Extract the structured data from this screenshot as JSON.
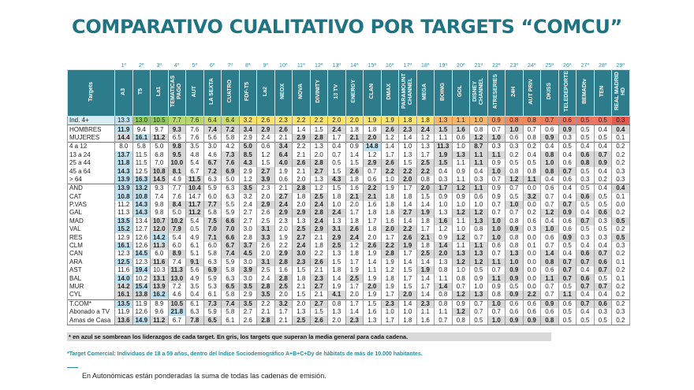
{
  "title": "COMPARATIVO CUALITATIVO POR TARGETS “COMCU”",
  "table": {
    "corner_label": "Targets",
    "ranks": [
      "1ª",
      "2ª",
      "3ª",
      "4ª",
      "5ª",
      "6ª",
      "7ª",
      "8ª",
      "9ª",
      "10ª",
      "11ª",
      "12ª",
      "13ª",
      "14ª",
      "15ª",
      "16ª",
      "17ª",
      "18ª",
      "19ª",
      "20ª",
      "21ª",
      "22ª",
      "23ª",
      "24ª",
      "25ª",
      "26ª",
      "27ª",
      "28ª",
      "29ª"
    ],
    "channels": [
      "A3",
      "T5",
      "La1",
      "TEMATICAS PAGO",
      "AUT",
      "LA SEXTA",
      "CUATRO",
      "FDF-T5",
      "La2",
      "NEOX",
      "NOVA",
      "DIVINITY",
      "13 TV",
      "ENERGY",
      "CLAN",
      "DMAX",
      "PARAMOUNT CHANNEL",
      "MEGA",
      "BOING",
      "GOL",
      "DISNEY CHANNEL",
      "ATRESERIES",
      "24H",
      "AUT PRIV",
      "DKISS",
      "TELEDEPORTE",
      "BEMADtv",
      "TEN",
      "REAL MADRID HD"
    ],
    "index_row": {
      "label": "Ind. 4+",
      "values": [
        "13.3",
        "13.0",
        "10.5",
        "7.7",
        "7.6",
        "6.4",
        "6.4",
        "3.2",
        "2.6",
        "2.3",
        "2.2",
        "2.2",
        "2.0",
        "2.0",
        "1.9",
        "1.9",
        "1.8",
        "1.8",
        "1.3",
        "1.1",
        "1.0",
        "0.9",
        "0.8",
        "0.8",
        "0.7",
        "0.6",
        "0.5",
        "0.5",
        "0.3"
      ],
      "colors": [
        "#bfe0ec",
        "#8fcc5c",
        "#8fcc5c",
        "#b6d86c",
        "#b6d86c",
        "#c9dc6e",
        "#c9dc6e",
        "#fde06a",
        "#fde36b",
        "#fde36b",
        "#fde36b",
        "#fde36b",
        "#fde36b",
        "#fde36b",
        "#fde36b",
        "#fde36b",
        "#fde36b",
        "#fde36b",
        "#f9b66a",
        "#f9b66a",
        "#f9b66a",
        "#f39a60",
        "#f2885e",
        "#f2885e",
        "#f07e5e",
        "#ee7764",
        "#ee7462",
        "#ee7462",
        "#e8564b"
      ]
    },
    "legend_codes": {
      "L": "liderazgo (azul)",
      "B": "supera la media (gris)"
    },
    "groups": [
      [
        {
          "label": "HOMBRES",
          "values": [
            "11.9",
            "9.4",
            "9.7",
            "9.3",
            "7.6",
            "7.4",
            "7.2",
            "3.4",
            "2.9",
            "2.6",
            "1.4",
            "1.5",
            "2.4",
            "1.8",
            "1.8",
            "2.6",
            "2.3",
            "2.4",
            "1.5",
            "1.6",
            "0.8",
            "0.7",
            "1.0",
            "0.7",
            "0.6",
            "0.9",
            "0.5",
            "0.4",
            "0.4"
          ],
          "codes": "L..B.BBBBB..B..BBBBB..B..B..B"
        },
        {
          "label": "MUJERES",
          "values": [
            "14.4",
            "16.1",
            "11.2",
            "6.5",
            "7.6",
            "5.6",
            "5.8",
            "2.9",
            "2.4",
            "2.1",
            "2.9",
            "2.8",
            "1.7",
            "2.1",
            "2.0",
            "1.2",
            "1.4",
            "1.2",
            "1.1",
            "0.6",
            "1.2",
            "1.0",
            "0.6",
            "0.8",
            "0.9",
            "0.3",
            "0.5",
            "0.5",
            "0.1"
          ],
          "codes": "BLB.......BB.BB.....BB..B...."
        }
      ],
      [
        {
          "label": "4 a 12",
          "values": [
            "8.0",
            "5.8",
            "5.0",
            "9.8",
            "3.5",
            "3.0",
            "4.2",
            "5.0",
            "0.6",
            "3.4",
            "2.2",
            "1.3",
            "0.4",
            "0.9",
            "14.8",
            "1.4",
            "1.0",
            "1.3",
            "11.3",
            "1.0",
            "8.7",
            "0.3",
            "0.3",
            "0.2",
            "0.4",
            "0.5",
            "0.4",
            "0.4",
            "0.2"
          ],
          "codes": "...B...B.B....L...B.B........"
        },
        {
          "label": "13 a 24",
          "values": [
            "13.7",
            "11.5",
            "6.8",
            "9.5",
            "4.8",
            "4.6",
            "7.3",
            "8.5",
            "1.2",
            "6.4",
            "2.1",
            "2.0",
            "0.7",
            "1.4",
            "1.2",
            "1.7",
            "1.3",
            "1.7",
            "1.9",
            "1.3",
            "1.1",
            "1.1",
            "0.2",
            "0.4",
            "0.8",
            "0.4",
            "0.6",
            "0.7",
            "0.2"
          ],
          "codes": "L..B..BB.B........BBBB..B.BB."
        },
        {
          "label": "25 a 44",
          "values": [
            "11.8",
            "11.5",
            "7.0",
            "10.0",
            "5.4",
            "6.7",
            "7.6",
            "4.3",
            "1.5",
            "4.0",
            "2.6",
            "2.8",
            "0.5",
            "1.5",
            "2.9",
            "2.6",
            "1.5",
            "2.5",
            "1.5",
            "1.1",
            "1.1",
            "0.9",
            "0.5",
            "0.5",
            "1.0",
            "0.6",
            "0.8",
            "0.9",
            "0.2"
          ],
          "codes": "L..B.BBB.BBB..BB.BB.B...B.BB."
        },
        {
          "label": "45 a 64",
          "values": [
            "14.3",
            "12.5",
            "10.8",
            "8.1",
            "6.7",
            "7.2",
            "6.9",
            "2.9",
            "2.7",
            "1.9",
            "2.1",
            "2.7",
            "1.5",
            "2.6",
            "0.7",
            "2.2",
            "2.2",
            "2.2",
            "0.4",
            "0.9",
            "0.4",
            "1.0",
            "0.8",
            "0.8",
            "0.8",
            "0.7",
            "0.5",
            "0.4",
            "0.3"
          ],
          "codes": "L.BB.BB.B..B.B.BBB...B..BB..."
        },
        {
          "label": "> 64",
          "values": [
            "13.9",
            "16.3",
            "14.5",
            "4.9",
            "11.5",
            "6.3",
            "5.0",
            "1.2",
            "3.9",
            "0.6",
            "2.0",
            "1.3",
            "4.3",
            "1.8",
            "0.6",
            "1.0",
            "2.0",
            "0.8",
            "0.3",
            "1.1",
            "0.3",
            "0.7",
            "1.2",
            "1.1",
            "0.4",
            "0.6",
            "0.3",
            "0.2",
            "0.3"
          ],
          "codes": "LLB.B...B...B...B.....BB....."
        }
      ],
      [
        {
          "label": "AND",
          "values": [
            "13.9",
            "13.2",
            "9.3",
            "7.7",
            "10.4",
            "5.9",
            "6.3",
            "3.5",
            "2.3",
            "2.1",
            "2.8",
            "1.2",
            "1.5",
            "1.6",
            "2.2",
            "1.9",
            "1.7",
            "2.0",
            "1.7",
            "1.2",
            "1.1",
            "0.9",
            "0.7",
            "0.0",
            "0.6",
            "0.4",
            "0.5",
            "0.4",
            "0.4"
          ],
          "codes": "LL..B..B..B...B..BBBB.......B"
        },
        {
          "label": "CAT",
          "values": [
            "10.8",
            "10.8",
            "7.4",
            "7.6",
            "14.7",
            "6.0",
            "6.3",
            "3.2",
            "2.0",
            "2.7",
            "1.8",
            "2.5",
            "1.8",
            "2.1",
            "2.1",
            "1.8",
            "1.8",
            "1.5",
            "0.9",
            "0.9",
            "0.6",
            "0.9",
            "0.5",
            "3.2",
            "0.7",
            "0.4",
            "0.6",
            "0.5",
            "0.1"
          ],
          "codes": "LL.......B.B.BB........B..B.."
        },
        {
          "label": "P.VAS",
          "values": [
            "11.2",
            "14.3",
            "9.8",
            "8.4",
            "11.7",
            "7.7",
            "5.5",
            "2.4",
            "2.9",
            "2.4",
            "2.0",
            "2.4",
            "1.0",
            "2.0",
            "1.6",
            "1.8",
            "1.4",
            "1.4",
            "1.0",
            "1.0",
            "1.0",
            "0.7",
            "1.0",
            "0.0",
            "0.7",
            "0.7",
            "0.5",
            "0.5",
            "0.0"
          ],
          "codes": ".L.BBB..BB.B..........B..B..."
        },
        {
          "label": "GAL",
          "values": [
            "11.3",
            "14.3",
            "9.8",
            "5.0",
            "11.2",
            "5.8",
            "5.9",
            "2.7",
            "2.6",
            "2.9",
            "2.9",
            "2.8",
            "2.4",
            "1.7",
            "1.8",
            "1.8",
            "2.7",
            "1.9",
            "1.3",
            "1.2",
            "1.2",
            "0.7",
            "0.7",
            "0.2",
            "1.2",
            "0.9",
            "0.4",
            "0.6",
            "0.2"
          ],
          "codes": ".L..B....BBBB...BB.BB...BB.B."
        },
        {
          "label": "MAD",
          "values": [
            "13.5",
            "13.4",
            "10.7",
            "10.2",
            "5.4",
            "7.5",
            "6.6",
            "2.7",
            "2.5",
            "2.3",
            "1.3",
            "2.4",
            "1.3",
            "1.8",
            "1.7",
            "1.6",
            "1.4",
            "1.8",
            "1.6",
            "1.1",
            "1.3",
            "1.0",
            "0.8",
            "0.6",
            "0.4",
            "0.6",
            "0.7",
            "0.3",
            "0.5"
          ],
          "codes": "L.BB.BB....B......B.BB....B.B"
        },
        {
          "label": "VAL",
          "values": [
            "15.2",
            "12.7",
            "12.0",
            "7.9",
            "0.5",
            "7.0",
            "7.0",
            "3.0",
            "3.1",
            "2.0",
            "2.5",
            "2.9",
            "3.1",
            "2.6",
            "1.8",
            "2.0",
            "2.2",
            "1.7",
            "1.2",
            "1.0",
            "0.8",
            "1.0",
            "0.9",
            "0.3",
            "1.0",
            "0.6",
            "0.5",
            "0.5",
            "0.2"
          ],
          "codes": "L.BB.BB.B.BBBB.BB....BB.B...."
        },
        {
          "label": "RES",
          "values": [
            "12.9",
            "12.6",
            "14.2",
            "5.4",
            "4.9",
            "7.1",
            "6.6",
            "2.8",
            "3.3",
            "1.9",
            "2.7",
            "2.1",
            "2.9",
            "2.4",
            "2.0",
            "1.7",
            "2.6",
            "2.1",
            "0.9",
            "1.2",
            "0.7",
            "1.0",
            "0.8",
            "0.0",
            "0.6",
            "0.9",
            "0.3",
            "0.3",
            "0.5"
          ],
          "codes": "..L..BB.B.B.BB..BB.B.B...B..B"
        },
        {
          "label": "CLM",
          "values": [
            "16.1",
            "12.6",
            "11.3",
            "6.0",
            "6.1",
            "6.0",
            "6.7",
            "3.7",
            "2.6",
            "2.2",
            "2.4",
            "1.8",
            "2.5",
            "1.2",
            "2.6",
            "2.2",
            "1.9",
            "1.8",
            "1.4",
            "1.1",
            "1.1",
            "0.6",
            "0.8",
            "0.1",
            "0.7",
            "0.5",
            "0.4",
            "0.4",
            "0.3"
          ],
          "codes": "L.B...BB..B.B.BBB.B.B........"
        },
        {
          "label": "CAN",
          "values": [
            "12.3",
            "14.5",
            "6.0",
            "8.9",
            "5.1",
            "5.8",
            "7.4",
            "4.5",
            "2.0",
            "2.9",
            "3.0",
            "2.2",
            "1.3",
            "1.8",
            "1.9",
            "2.8",
            "1.7",
            "2.5",
            "2.0",
            "1.3",
            "1.3",
            "0.7",
            "1.3",
            "0.0",
            "1.4",
            "0.4",
            "0.6",
            "0.7",
            "0.2"
          ],
          "codes": ".L.B..BB.BB....B.BBBB.B.B.BB."
        },
        {
          "label": "ARA",
          "values": [
            "12.5",
            "12.3",
            "11.6",
            "7.4",
            "9.1",
            "6.3",
            "5.9",
            "3.0",
            "3.1",
            "2.8",
            "2.3",
            "2.6",
            "1.5",
            "1.7",
            "1.4",
            "1.9",
            "1.4",
            "1.4",
            "1.3",
            "1.2",
            "1.2",
            "1.1",
            "1.0",
            "0.0",
            "0.8",
            "0.7",
            "0.7",
            "0.6",
            "0.1"
          ],
          "codes": "L.B.B...BBBB.......BBBB.BBBB."
        },
        {
          "label": "AST",
          "values": [
            "11.6",
            "19.4",
            "10.3",
            "11.3",
            "5.6",
            "6.9",
            "5.8",
            "3.9",
            "2.5",
            "1.6",
            "1.5",
            "2.1",
            "1.8",
            "1.9",
            "1.1",
            "1.2",
            "1.5",
            "1.9",
            "0.8",
            "1.0",
            "0.5",
            "0.7",
            "0.9",
            "0.0",
            "0.6",
            "0.7",
            "0.4",
            "0.7",
            "0.2"
          ],
          "codes": ".L.B.B.B.........B....B..B.B."
        },
        {
          "label": "BAL",
          "values": [
            "14.0",
            "10.2",
            "13.1",
            "13.0",
            "4.9",
            "5.9",
            "6.3",
            "3.0",
            "2.4",
            "2.8",
            "1.8",
            "2.3",
            "1.4",
            "2.5",
            "1.9",
            "1.8",
            "1.7",
            "1.4",
            "1.1",
            "0.8",
            "0.9",
            "1.1",
            "0.9",
            "0.0",
            "1.1",
            "0.7",
            "0.6",
            "0.5",
            "0.1"
          ],
          "codes": "L.BB.....B.B.B.......BB.BBB.."
        },
        {
          "label": "MUR",
          "values": [
            "14.2",
            "15.4",
            "13.9",
            "7.2",
            "3.5",
            "5.3",
            "6.5",
            "3.5",
            "2.8",
            "2.5",
            "2.1",
            "2.7",
            "1.9",
            "1.7",
            "2.0",
            "1.9",
            "1.5",
            "1.7",
            "1.4",
            "0.7",
            "1.0",
            "0.9",
            "0.5",
            "0.0",
            "0.7",
            "0.5",
            "0.7",
            "0.7",
            "0.2"
          ],
          "codes": "BLB...BBBB.B..B...B.......BB."
        },
        {
          "label": "CYL",
          "values": [
            "16.1",
            "13.8",
            "16.2",
            "4.6",
            "0.4",
            "6.1",
            "5.8",
            "2.9",
            "3.5",
            "2.0",
            "1.5",
            "2.1",
            "4.1",
            "2.0",
            "1.9",
            "1.7",
            "2.0",
            "1.4",
            "0.8",
            "1.2",
            "1.3",
            "0.8",
            "0.9",
            "2.2",
            "0.7",
            "1.1",
            "0.4",
            "0.4",
            "0.2"
          ],
          "codes": "BBL.....B...B...B..BB.BB.B..."
        }
      ],
      [
        {
          "label": "T.COM*",
          "values": [
            "13.5",
            "11.9",
            "8.9",
            "10.5",
            "6.1",
            "7.3",
            "7.4",
            "3.5",
            "2.2",
            "3.2",
            "2.0",
            "2.7",
            "0.8",
            "1.7",
            "1.5",
            "2.3",
            "1.4",
            "2.3",
            "0.8",
            "0.9",
            "0.7",
            "1.0",
            "0.6",
            "0.6",
            "0.9",
            "0.6",
            "0.7",
            "0.6",
            "0.2"
          ],
          "codes": "L..B.BBB.B.B...B.B...B..B.BB."
        },
        {
          "label": "Abonado a TV",
          "values": [
            "11.9",
            "12.6",
            "9.6",
            "21.8",
            "6.3",
            "5.9",
            "5.8",
            "2.7",
            "2.1",
            "1.7",
            "1.3",
            "1.5",
            "1.3",
            "1.4",
            "1.6",
            "1.0",
            "1.0",
            "1.1",
            "1.1",
            "1.2",
            "0.7",
            "0.7",
            "0.6",
            "0.6",
            "0.6",
            "0.5",
            "0.4",
            "0.3",
            "0.3"
          ],
          "codes": "...L...............B........."
        },
        {
          "label": "Amas de Casa",
          "values": [
            "13.6",
            "14.9",
            "11.2",
            "6.7",
            "7.8",
            "6.5",
            "6.1",
            "2.6",
            "2.8",
            "2.1",
            "2.5",
            "2.6",
            "2.0",
            "2.3",
            "1.3",
            "1.7",
            "1.8",
            "1.6",
            "0.7",
            "0.8",
            "0.5",
            "1.0",
            "0.9",
            "0.9",
            "0.8",
            "0.5",
            "0.5",
            "0.5",
            "0.2"
          ],
          "codes": "BLB.BB..B.BB.B.......BBBB...."
        }
      ]
    ]
  },
  "notes": {
    "highlight_note": "* en azul se sombrean los liderazgos de cada target. En gris, los targets que superan la media general para cada cadena.",
    "commercial_target_note": "*Target Comercial: Individuos de 18 a 59 años, dentro del Índice Sociodemográfico A+B+C+Dy de hábitats de más de 10.000 habitantes.",
    "autonomic_note": "En Autonómicas están ponderadas la suma de todas las cadenas de emisión."
  }
}
